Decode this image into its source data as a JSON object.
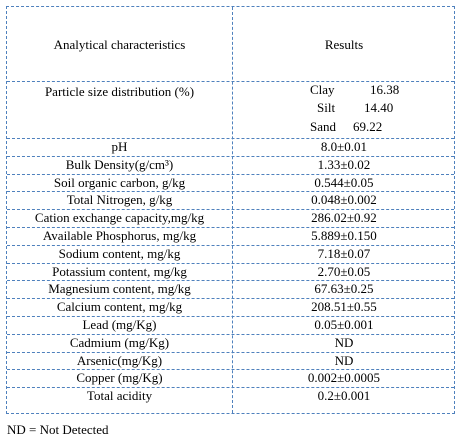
{
  "header": {
    "col1": "Analytical characteristics",
    "col2": "Results"
  },
  "psd": {
    "label": "Particle size distribution (%)",
    "items": [
      {
        "name": "Clay",
        "value": "16.38"
      },
      {
        "name": "Silt",
        "value": "14.40"
      },
      {
        "name": "Sand",
        "value": "69.22"
      }
    ]
  },
  "rows": [
    {
      "label": "pH",
      "value": "8.0±0.01"
    },
    {
      "label": "Bulk Density(g/cm³)",
      "value": "1.33±0.02"
    },
    {
      "label": "Soil organic carbon, g/kg",
      "value": "0.544±0.05"
    },
    {
      "label": "Total Nitrogen, g/kg",
      "value": "0.048±0.002"
    },
    {
      "label": "Cation exchange capacity,mg/kg",
      "value": "286.02±0.92"
    },
    {
      "label": "Available Phosphorus, mg/kg",
      "value": "5.889±0.150"
    },
    {
      "label": "Sodium content, mg/kg",
      "value": "7.18±0.07"
    },
    {
      "label": "Potassium content, mg/kg",
      "value": "2.70±0.05"
    },
    {
      "label": "Magnesium content, mg/kg",
      "value": "67.63±0.25"
    },
    {
      "label": "Calcium content, mg/kg",
      "value": "208.51±0.55"
    },
    {
      "label": "Lead   (mg/Kg)",
      "value": "0.05±0.001"
    },
    {
      "label": "Cadmium   (mg/Kg)",
      "value": "ND"
    },
    {
      "label": "Arsenic(mg/Kg)",
      "value": "ND"
    },
    {
      "label": "Copper (mg/Kg)",
      "value": "0.002±0.0005"
    },
    {
      "label": "Total acidity",
      "value": "0.2±0.001"
    }
  ],
  "footnote": "ND = Not Detected"
}
